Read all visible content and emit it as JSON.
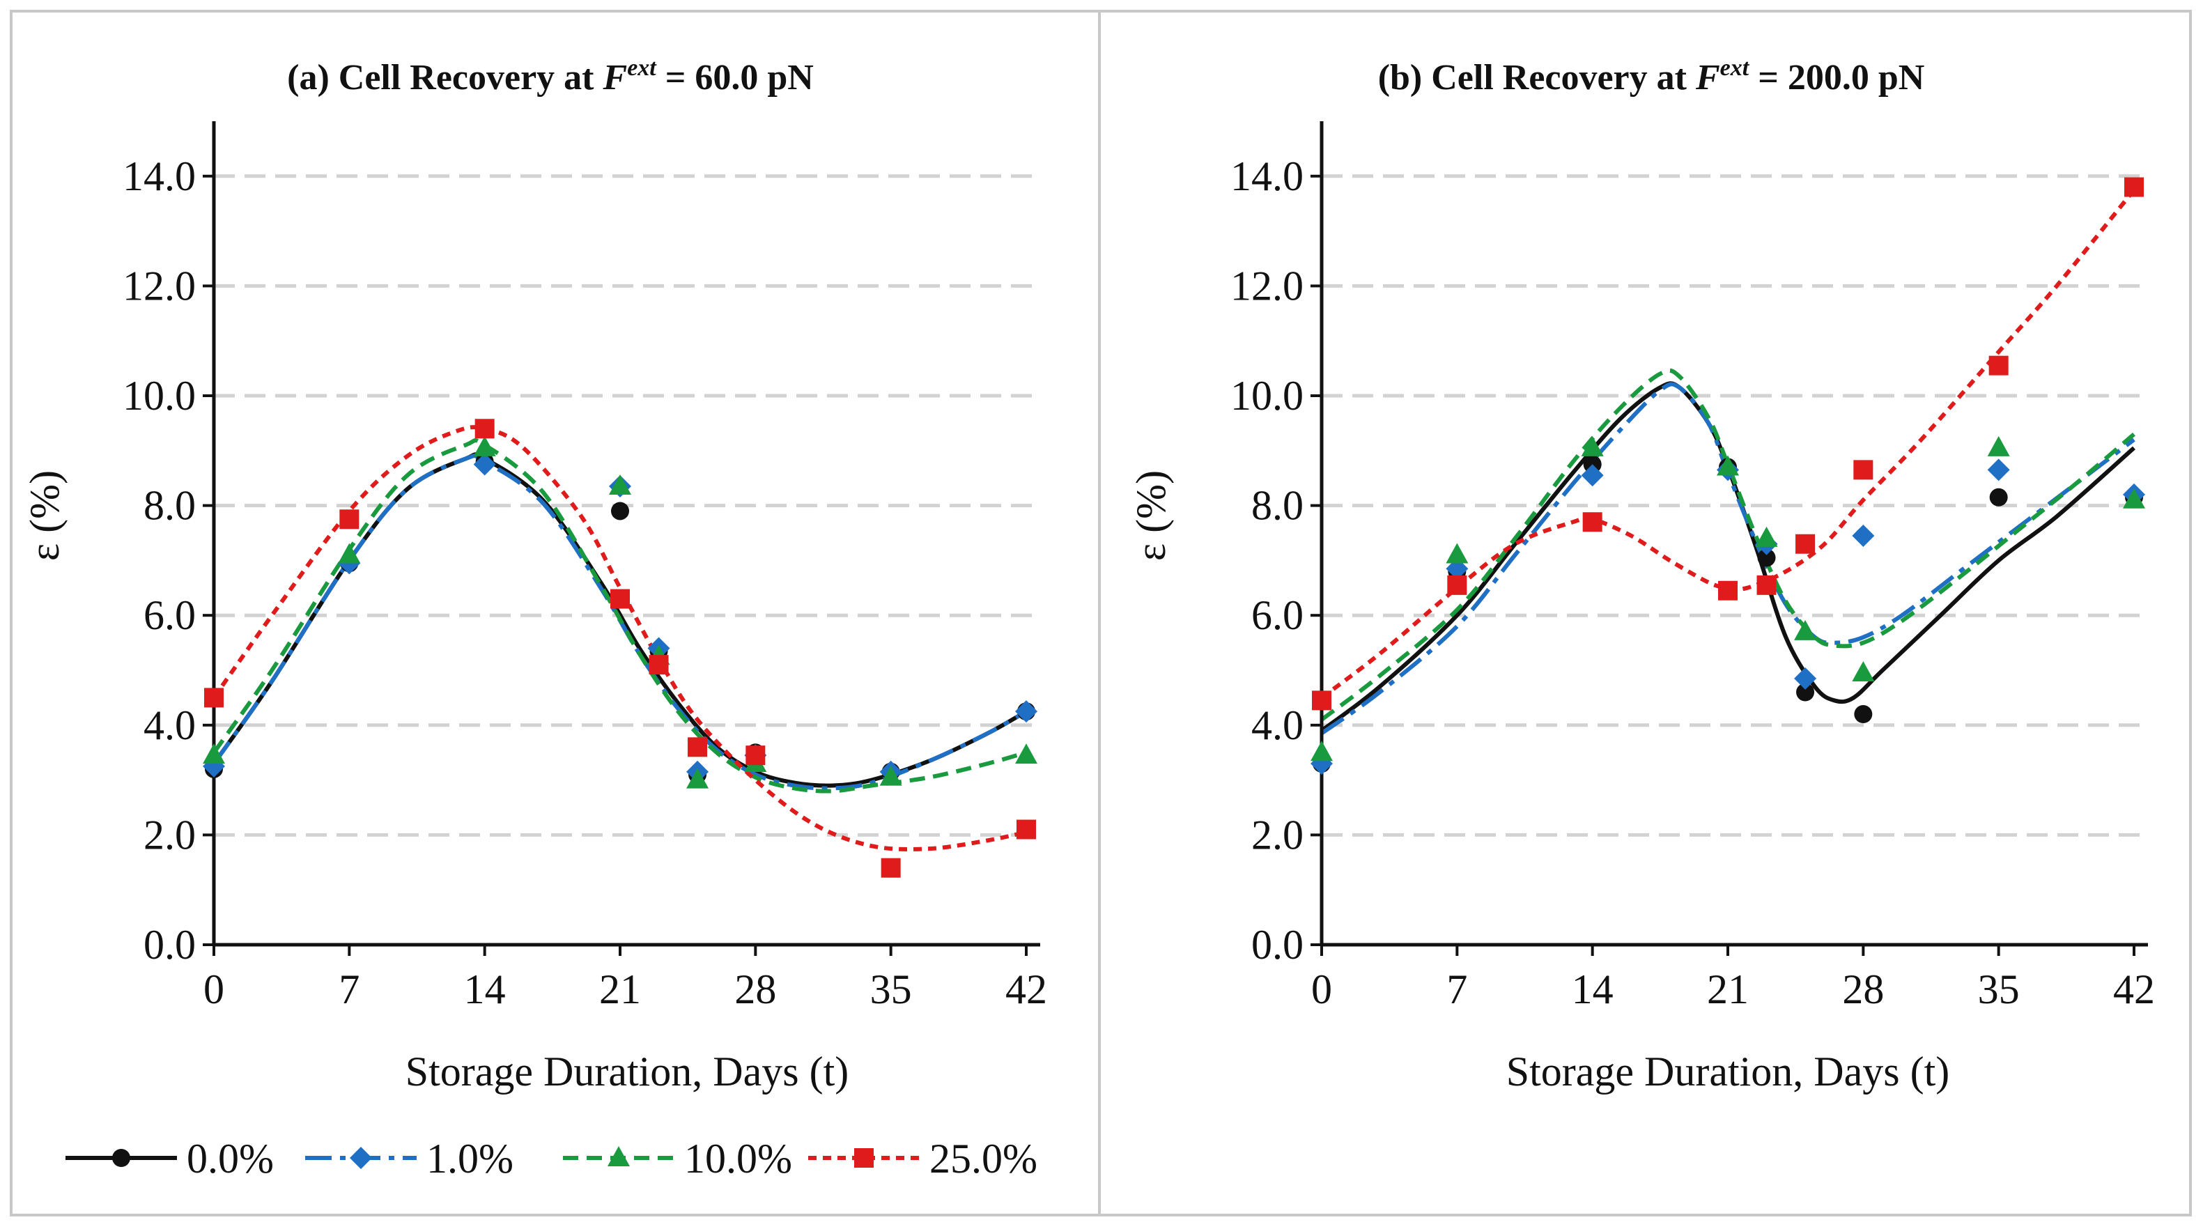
{
  "chart_data": [
    {
      "type": "scatter",
      "panel_id": "a",
      "title_prefix": "(a) Cell Recovery at ",
      "title_symbol": "F",
      "title_superscript": "ext",
      "title_suffix": " = 60.0 pN",
      "xlabel": "Storage Duration, Days (t)",
      "ylabel": "ε (%)",
      "xlim": [
        0,
        42
      ],
      "ylim": [
        0,
        15
      ],
      "xticks": [
        0,
        7,
        14,
        21,
        28,
        35,
        42
      ],
      "xtick_labels": [
        "0",
        "7",
        "14",
        "21",
        "28",
        "35",
        "42"
      ],
      "yticks": [
        0,
        2,
        4,
        6,
        8,
        10,
        12,
        14
      ],
      "ytick_labels": [
        "0.0",
        "2.0",
        "4.0",
        "6.0",
        "8.0",
        "10.0",
        "12.0",
        "14.0"
      ],
      "grid": "horizontal dashed",
      "x": [
        0,
        7,
        14,
        21,
        23,
        25,
        28,
        35,
        42
      ],
      "series": [
        {
          "name": "0.0%",
          "values": [
            3.2,
            6.95,
            8.8,
            7.9,
            5.35,
            3.1,
            3.5,
            3.15,
            4.25
          ],
          "fit": [
            [
              0,
              3.3
            ],
            [
              3,
              4.8
            ],
            [
              7,
              7.0
            ],
            [
              10,
              8.3
            ],
            [
              13,
              8.85
            ],
            [
              14,
              8.85
            ],
            [
              17,
              8.1
            ],
            [
              20,
              6.6
            ],
            [
              22,
              5.4
            ],
            [
              24,
              4.4
            ],
            [
              26,
              3.6
            ],
            [
              28,
              3.15
            ],
            [
              30,
              2.95
            ],
            [
              32,
              2.9
            ],
            [
              34,
              3.0
            ],
            [
              37,
              3.35
            ],
            [
              40,
              3.85
            ],
            [
              42,
              4.25
            ]
          ]
        },
        {
          "name": "1.0%",
          "values": [
            3.25,
            6.95,
            8.75,
            8.35,
            5.4,
            3.15,
            3.45,
            3.15,
            4.25
          ],
          "fit": [
            [
              0,
              3.3
            ],
            [
              3,
              4.8
            ],
            [
              7,
              7.0
            ],
            [
              10,
              8.3
            ],
            [
              13,
              8.85
            ],
            [
              14,
              8.8
            ],
            [
              17,
              8.05
            ],
            [
              20,
              6.5
            ],
            [
              22,
              5.3
            ],
            [
              24,
              4.3
            ],
            [
              26,
              3.55
            ],
            [
              28,
              3.1
            ],
            [
              30,
              2.9
            ],
            [
              32,
              2.85
            ],
            [
              34,
              2.95
            ],
            [
              37,
              3.35
            ],
            [
              40,
              3.85
            ],
            [
              42,
              4.25
            ]
          ]
        },
        {
          "name": "10.0%",
          "values": [
            3.45,
            7.1,
            9.05,
            8.35,
            5.25,
            3.0,
            3.3,
            3.05,
            3.45
          ],
          "fit": [
            [
              0,
              3.5
            ],
            [
              3,
              5.0
            ],
            [
              7,
              7.2
            ],
            [
              10,
              8.55
            ],
            [
              13,
              9.1
            ],
            [
              14,
              9.1
            ],
            [
              17,
              8.25
            ],
            [
              20,
              6.55
            ],
            [
              22,
              5.3
            ],
            [
              24,
              4.25
            ],
            [
              26,
              3.5
            ],
            [
              28,
              3.05
            ],
            [
              30,
              2.85
            ],
            [
              32,
              2.8
            ],
            [
              34,
              2.9
            ],
            [
              37,
              3.05
            ],
            [
              40,
              3.3
            ],
            [
              42,
              3.5
            ]
          ]
        },
        {
          "name": "25.0%",
          "values": [
            4.5,
            7.75,
            9.4,
            6.3,
            5.1,
            3.6,
            3.45,
            1.4,
            2.1
          ],
          "fit": [
            [
              0,
              4.5
            ],
            [
              3,
              6.0
            ],
            [
              7,
              7.9
            ],
            [
              10,
              8.9
            ],
            [
              12.5,
              9.35
            ],
            [
              14,
              9.4
            ],
            [
              16,
              9.05
            ],
            [
              19,
              7.8
            ],
            [
              21,
              6.5
            ],
            [
              23,
              5.2
            ],
            [
              25,
              4.1
            ],
            [
              28,
              3.0
            ],
            [
              31,
              2.2
            ],
            [
              34,
              1.8
            ],
            [
              37,
              1.75
            ],
            [
              40,
              1.9
            ],
            [
              42,
              2.05
            ]
          ]
        }
      ]
    },
    {
      "type": "scatter",
      "panel_id": "b",
      "title_prefix": "(b) Cell Recovery at ",
      "title_symbol": "F",
      "title_superscript": "ext",
      "title_suffix": " = 200.0 pN",
      "xlabel": "Storage Duration, Days (t)",
      "ylabel": "ε (%)",
      "xlim": [
        0,
        42
      ],
      "ylim": [
        0,
        15
      ],
      "xticks": [
        0,
        7,
        14,
        21,
        28,
        35,
        42
      ],
      "xtick_labels": [
        "0",
        "7",
        "14",
        "21",
        "28",
        "35",
        "42"
      ],
      "yticks": [
        0,
        2,
        4,
        6,
        8,
        10,
        12,
        14
      ],
      "ytick_labels": [
        "0.0",
        "2.0",
        "4.0",
        "6.0",
        "8.0",
        "10.0",
        "12.0",
        "14.0"
      ],
      "grid": "horizontal dashed",
      "x": [
        0,
        7,
        14,
        21,
        23,
        25,
        28,
        35,
        42
      ],
      "series": [
        {
          "name": "0.0%",
          "values": [
            3.3,
            6.8,
            8.75,
            8.7,
            7.05,
            4.6,
            4.2,
            8.15,
            8.15
          ],
          "fit": [
            [
              0,
              3.9
            ],
            [
              3,
              4.7
            ],
            [
              7,
              6.0
            ],
            [
              10,
              7.3
            ],
            [
              13,
              8.6
            ],
            [
              15.5,
              9.6
            ],
            [
              17.5,
              10.15
            ],
            [
              18.5,
              10.15
            ],
            [
              20,
              9.5
            ],
            [
              21,
              8.7
            ],
            [
              22.5,
              7.2
            ],
            [
              24,
              5.6
            ],
            [
              25.5,
              4.7
            ],
            [
              26.5,
              4.45
            ],
            [
              27.5,
              4.5
            ],
            [
              29,
              5.0
            ],
            [
              32,
              6.0
            ],
            [
              35,
              7.0
            ],
            [
              38,
              7.8
            ],
            [
              42,
              9.05
            ]
          ]
        },
        {
          "name": "1.0%",
          "values": [
            3.3,
            6.85,
            8.55,
            8.65,
            7.3,
            4.85,
            7.45,
            8.65,
            8.2
          ],
          "fit": [
            [
              0,
              3.85
            ],
            [
              3,
              4.6
            ],
            [
              7,
              5.8
            ],
            [
              10,
              7.1
            ],
            [
              13,
              8.4
            ],
            [
              15.5,
              9.4
            ],
            [
              17.5,
              10.1
            ],
            [
              18.5,
              10.15
            ],
            [
              20,
              9.5
            ],
            [
              21,
              8.6
            ],
            [
              22.5,
              7.3
            ],
            [
              24,
              6.2
            ],
            [
              25.5,
              5.6
            ],
            [
              26.5,
              5.5
            ],
            [
              28,
              5.6
            ],
            [
              30,
              6.0
            ],
            [
              33,
              6.8
            ],
            [
              36,
              7.6
            ],
            [
              39,
              8.4
            ],
            [
              42,
              9.2
            ]
          ]
        },
        {
          "name": "10.0%",
          "values": [
            3.5,
            7.1,
            9.05,
            8.7,
            7.4,
            5.7,
            4.95,
            9.05,
            8.1
          ],
          "fit": [
            [
              0,
              4.1
            ],
            [
              3,
              4.9
            ],
            [
              7,
              6.1
            ],
            [
              10,
              7.4
            ],
            [
              13,
              8.8
            ],
            [
              15.5,
              9.8
            ],
            [
              17.5,
              10.4
            ],
            [
              18.5,
              10.35
            ],
            [
              20,
              9.6
            ],
            [
              21,
              8.75
            ],
            [
              22.5,
              7.4
            ],
            [
              24,
              6.25
            ],
            [
              25.5,
              5.6
            ],
            [
              26.5,
              5.45
            ],
            [
              28,
              5.5
            ],
            [
              30,
              5.9
            ],
            [
              33,
              6.7
            ],
            [
              36,
              7.55
            ],
            [
              39,
              8.4
            ],
            [
              42,
              9.3
            ]
          ]
        },
        {
          "name": "25.0%",
          "values": [
            4.45,
            6.55,
            7.7,
            6.45,
            6.55,
            7.3,
            8.65,
            10.55,
            13.8
          ],
          "fit": [
            [
              0,
              4.5
            ],
            [
              3,
              5.3
            ],
            [
              7,
              6.5
            ],
            [
              10,
              7.3
            ],
            [
              13,
              7.7
            ],
            [
              14,
              7.75
            ],
            [
              16,
              7.45
            ],
            [
              18,
              7.0
            ],
            [
              20,
              6.6
            ],
            [
              21,
              6.5
            ],
            [
              22,
              6.5
            ],
            [
              24,
              6.8
            ],
            [
              26,
              7.3
            ],
            [
              28,
              8.1
            ],
            [
              31,
              9.2
            ],
            [
              35,
              10.8
            ],
            [
              38,
              12.0
            ],
            [
              42,
              13.75
            ]
          ]
        }
      ]
    }
  ],
  "legend": {
    "position": "bottom-left",
    "entries": [
      {
        "label": "0.0%",
        "color": "#111111",
        "marker": "circle",
        "dash": "solid"
      },
      {
        "label": "1.0%",
        "color": "#1f6fc5",
        "marker": "diamond",
        "dash": "long-dash-dot"
      },
      {
        "label": "10.0%",
        "color": "#1a9a3e",
        "marker": "triangle",
        "dash": "dashed"
      },
      {
        "label": "25.0%",
        "color": "#e01b1b",
        "marker": "square",
        "dash": "short-dash"
      }
    ]
  }
}
